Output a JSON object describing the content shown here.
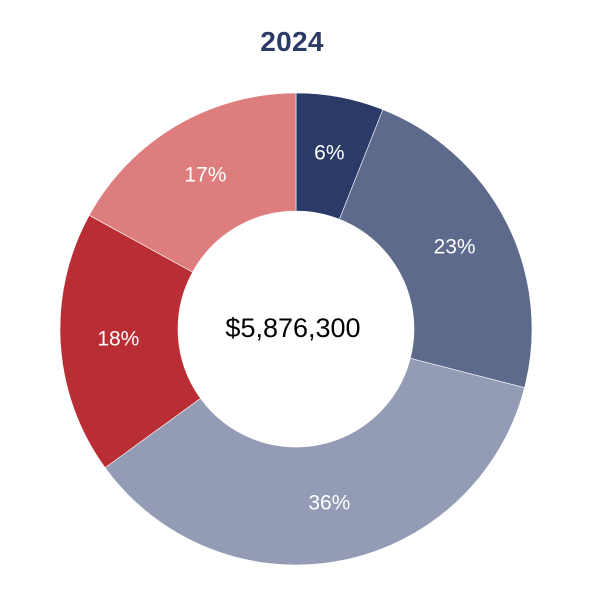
{
  "chart_data": {
    "type": "pie",
    "title": "2024",
    "center_label": "$5,876,300",
    "slices": [
      {
        "label": "6%",
        "value": 6,
        "color": "#2b3a67"
      },
      {
        "label": "23%",
        "value": 23,
        "color": "#5e6a8c"
      },
      {
        "label": "36%",
        "value": 36,
        "color": "#939cb4"
      },
      {
        "label": "18%",
        "value": 18,
        "color": "#b92e34"
      },
      {
        "label": "17%",
        "value": 17,
        "color": "#de7d7d"
      }
    ]
  }
}
